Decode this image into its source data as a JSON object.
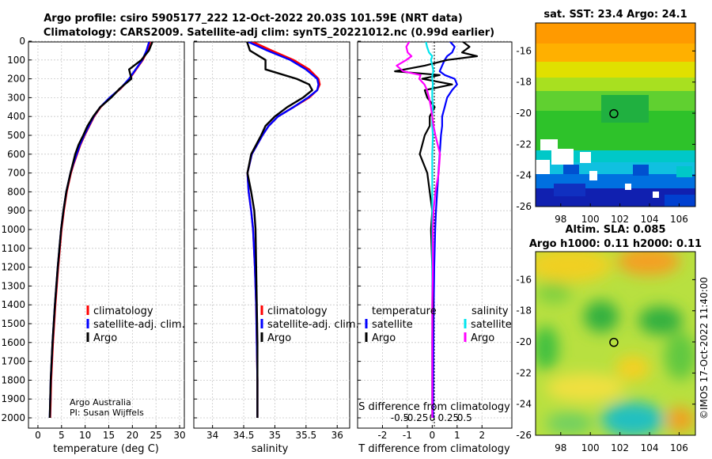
{
  "header": {
    "line1": "Argo profile: csiro 5905177_222 12-Oct-2022 20.03S 101.59E (NRT data)",
    "line2": "Climatology: CARS2009. Satellite-adj clim: synTS_20221012.nc (0.99d earlier)"
  },
  "colors": {
    "climatology": "#ff0000",
    "satellite_adj": "#0000ff",
    "argo": "#000000",
    "sal_satellite": "#00e5ee",
    "sal_argo": "#ff00ff"
  },
  "depth_ticks": [
    "0",
    "100",
    "200",
    "300",
    "400",
    "500",
    "600",
    "700",
    "800",
    "900",
    "1000",
    "1100",
    "1200",
    "1300",
    "1400",
    "1500",
    "1600",
    "1700",
    "1800",
    "1900",
    "2000"
  ],
  "credits": {
    "line1": "Argo Australia",
    "line2": "PI: Susan Wijffels"
  },
  "imos_stamp": "©IMOS 17-Oct-2022 11:40:00",
  "chart_data": [
    {
      "type": "line",
      "id": "temperature",
      "xlabel": "temperature (deg C)",
      "ylabel": "",
      "xlim": [
        -2,
        31
      ],
      "ylim": [
        2060,
        0
      ],
      "xticks": [
        0,
        5,
        10,
        15,
        20,
        25,
        30
      ],
      "xtick_labels": [
        "0",
        "5",
        "10",
        "15",
        "20",
        "25",
        "30"
      ],
      "legend": [
        "climatology",
        "satellite-adj. clim.",
        "Argo"
      ],
      "depth": [
        0,
        50,
        100,
        150,
        200,
        250,
        300,
        350,
        400,
        450,
        500,
        550,
        600,
        650,
        700,
        800,
        900,
        1000,
        1200,
        1400,
        1600,
        1800,
        2000
      ],
      "series": [
        {
          "name": "climatology",
          "values": [
            23.8,
            23.2,
            22.2,
            20.8,
            19.4,
            17.6,
            15.3,
            13.3,
            11.9,
            10.9,
            9.9,
            9.0,
            8.3,
            7.6,
            7.0,
            6.1,
            5.5,
            5.0,
            4.3,
            3.7,
            3.2,
            2.8,
            2.6
          ]
        },
        {
          "name": "satellite-adj. clim.",
          "values": [
            23.6,
            23.0,
            22.1,
            20.7,
            19.3,
            17.5,
            15.2,
            13.2,
            11.8,
            10.8,
            9.8,
            8.9,
            8.2,
            7.5,
            6.9,
            6.0,
            5.4,
            4.9,
            4.2,
            3.6,
            3.1,
            2.7,
            2.5
          ]
        },
        {
          "name": "Argo",
          "values": [
            24.3,
            23.5,
            21.9,
            19.3,
            19.8,
            17.4,
            15.5,
            13.2,
            11.7,
            10.5,
            9.6,
            8.6,
            7.9,
            7.4,
            6.9,
            6.0,
            5.4,
            4.9,
            4.2,
            3.6,
            3.1,
            2.7,
            2.5
          ]
        }
      ]
    },
    {
      "type": "line",
      "id": "salinity",
      "xlabel": "salinity",
      "xlim": [
        33.7,
        36.2
      ],
      "ylim": [
        2060,
        0
      ],
      "xticks": [
        34,
        34.5,
        35,
        35.5,
        36
      ],
      "xtick_labels": [
        "34",
        "34.5",
        "35",
        "35.5",
        "36"
      ],
      "legend": [
        "climatology",
        "satellite-adj. clim.",
        "Argo"
      ],
      "depth": [
        0,
        50,
        100,
        150,
        200,
        230,
        260,
        300,
        350,
        400,
        450,
        500,
        600,
        700,
        800,
        900,
        1000,
        1200,
        1400,
        1600,
        1800,
        2000
      ],
      "series": [
        {
          "name": "climatology",
          "values": [
            34.62,
            34.95,
            35.3,
            35.55,
            35.7,
            35.72,
            35.68,
            35.55,
            35.3,
            35.05,
            34.9,
            34.8,
            34.63,
            34.56,
            34.58,
            34.62,
            34.65,
            34.68,
            34.7,
            34.71,
            34.72,
            34.72
          ]
        },
        {
          "name": "satellite-adj. clim.",
          "values": [
            34.55,
            34.88,
            35.25,
            35.5,
            35.68,
            35.7,
            35.68,
            35.53,
            35.3,
            35.05,
            34.9,
            34.8,
            34.63,
            34.56,
            34.58,
            34.62,
            34.65,
            34.68,
            34.7,
            34.71,
            34.72,
            34.72
          ]
        },
        {
          "name": "Argo",
          "values": [
            34.55,
            34.6,
            34.85,
            34.85,
            35.35,
            35.55,
            35.6,
            35.45,
            35.2,
            35.0,
            34.85,
            34.78,
            34.62,
            34.56,
            34.62,
            34.67,
            34.69,
            34.7,
            34.71,
            34.72,
            34.72,
            34.72
          ]
        }
      ]
    },
    {
      "type": "line",
      "id": "differences",
      "xlabel": "T difference from climatology",
      "xlabel_top": "S difference from climatology",
      "xlim": [
        -3,
        3.2
      ],
      "ylim": [
        2060,
        0
      ],
      "xticks": [
        -2,
        -1,
        0,
        1,
        2
      ],
      "xtick_labels": [
        "-2",
        "-1",
        "0",
        "1",
        "2"
      ],
      "s_xticks": [
        -0.5,
        -0.25,
        0,
        0.25,
        0.5
      ],
      "s_xtick_labels": [
        "-0.5",
        "-0.25",
        "0",
        "0.25",
        "0.5"
      ],
      "legend_temperature_title": "temperature",
      "legend_salinity_title": "salinity",
      "legend_temperature": [
        "satellite",
        "Argo"
      ],
      "legend_salinity": [
        "satellite",
        "Argo"
      ],
      "depth": [
        0,
        30,
        60,
        80,
        100,
        130,
        160,
        180,
        200,
        230,
        260,
        300,
        350,
        400,
        450,
        500,
        600,
        700,
        800,
        900,
        1000,
        1200,
        1400,
        1600,
        1800,
        2000
      ],
      "series": [
        {
          "name": "T satellite",
          "values": [
            0.7,
            0.9,
            0.8,
            0.6,
            0.5,
            0.4,
            0.3,
            0.5,
            0.9,
            1.0,
            0.8,
            0.6,
            0.5,
            0.4,
            0.4,
            0.35,
            0.3,
            0.25,
            0.2,
            0.15,
            0.12,
            0.08,
            0.06,
            0.05,
            0.04,
            0.03
          ]
        },
        {
          "name": "T Argo",
          "values": [
            1.2,
            1.5,
            1.2,
            1.8,
            0.6,
            -0.3,
            -1.5,
            0.3,
            -0.4,
            0.8,
            -0.3,
            -0.2,
            0.1,
            -0.1,
            -0.1,
            -0.3,
            -0.5,
            -0.2,
            -0.1,
            0.0,
            -0.05,
            0.0,
            0.02,
            0.0,
            0.0,
            0.0
          ]
        },
        {
          "name": "S satellite",
          "values": [
            -0.1,
            -0.08,
            -0.05,
            0.0,
            -0.02,
            0.0,
            0.02,
            0.0,
            0.0,
            0.01,
            0.0,
            0.0,
            0.01,
            0.0,
            0.0,
            0.01,
            0.0,
            0.0,
            0.0,
            0.0,
            0.0,
            0.0,
            0.0,
            0.0,
            0.0,
            0.0
          ]
        },
        {
          "name": "S Argo",
          "values": [
            -0.35,
            -0.4,
            -0.38,
            -0.32,
            -0.4,
            -0.55,
            -0.45,
            -0.18,
            -0.2,
            -0.12,
            -0.08,
            -0.05,
            -0.02,
            0.0,
            0.02,
            0.05,
            0.12,
            0.1,
            0.05,
            0.02,
            0.01,
            0.01,
            0.0,
            0.0,
            0.0,
            0.0
          ]
        }
      ]
    },
    {
      "type": "heatmap",
      "id": "sst-map",
      "title": "sat. SST: 23.4 Argo: 24.1",
      "xlim": [
        96.3,
        107.1
      ],
      "ylim": [
        -26,
        -14.2
      ],
      "xticks": [
        98,
        100,
        102,
        104,
        106
      ],
      "xtick_labels": [
        "98",
        "100",
        "102",
        "104",
        "106"
      ],
      "yticks": [
        -16,
        -18,
        -20,
        -22,
        -24,
        -26
      ],
      "ytick_labels": [
        "-16",
        "-18",
        "-20",
        "-22",
        "-24",
        "-26"
      ],
      "argo_position": [
        101.59,
        -20.03
      ]
    },
    {
      "type": "heatmap",
      "id": "sla-map",
      "title": "Altim. SLA: 0.085",
      "title2": "Argo h1000: 0.11 h2000: 0.11",
      "xlim": [
        96.3,
        107.1
      ],
      "ylim": [
        -26,
        -14.2
      ],
      "xticks": [
        98,
        100,
        102,
        104,
        106
      ],
      "xtick_labels": [
        "98",
        "100",
        "102",
        "104",
        "106"
      ],
      "yticks": [
        -16,
        -18,
        -20,
        -22,
        -24,
        -26
      ],
      "ytick_labels": [
        "-16",
        "-18",
        "-20",
        "-22",
        "-24",
        "-26"
      ],
      "argo_position": [
        101.59,
        -20.03
      ]
    }
  ]
}
